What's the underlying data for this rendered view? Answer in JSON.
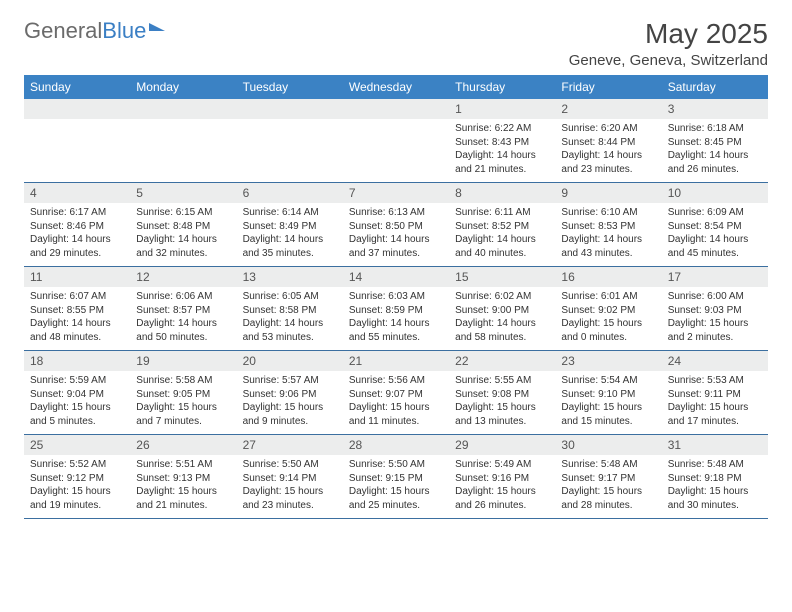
{
  "logo": {
    "part1": "General",
    "part2": "Blue"
  },
  "title": "May 2025",
  "location": "Geneve, Geneva, Switzerland",
  "header_bg": "#3b82c4",
  "day_headers": [
    "Sunday",
    "Monday",
    "Tuesday",
    "Wednesday",
    "Thursday",
    "Friday",
    "Saturday"
  ],
  "weeks": [
    {
      "nums": [
        "",
        "",
        "",
        "",
        "1",
        "2",
        "3"
      ],
      "cells": [
        null,
        null,
        null,
        null,
        {
          "sunrise": "6:22 AM",
          "sunset": "8:43 PM",
          "daylight": "14 hours and 21 minutes."
        },
        {
          "sunrise": "6:20 AM",
          "sunset": "8:44 PM",
          "daylight": "14 hours and 23 minutes."
        },
        {
          "sunrise": "6:18 AM",
          "sunset": "8:45 PM",
          "daylight": "14 hours and 26 minutes."
        }
      ]
    },
    {
      "nums": [
        "4",
        "5",
        "6",
        "7",
        "8",
        "9",
        "10"
      ],
      "cells": [
        {
          "sunrise": "6:17 AM",
          "sunset": "8:46 PM",
          "daylight": "14 hours and 29 minutes."
        },
        {
          "sunrise": "6:15 AM",
          "sunset": "8:48 PM",
          "daylight": "14 hours and 32 minutes."
        },
        {
          "sunrise": "6:14 AM",
          "sunset": "8:49 PM",
          "daylight": "14 hours and 35 minutes."
        },
        {
          "sunrise": "6:13 AM",
          "sunset": "8:50 PM",
          "daylight": "14 hours and 37 minutes."
        },
        {
          "sunrise": "6:11 AM",
          "sunset": "8:52 PM",
          "daylight": "14 hours and 40 minutes."
        },
        {
          "sunrise": "6:10 AM",
          "sunset": "8:53 PM",
          "daylight": "14 hours and 43 minutes."
        },
        {
          "sunrise": "6:09 AM",
          "sunset": "8:54 PM",
          "daylight": "14 hours and 45 minutes."
        }
      ]
    },
    {
      "nums": [
        "11",
        "12",
        "13",
        "14",
        "15",
        "16",
        "17"
      ],
      "cells": [
        {
          "sunrise": "6:07 AM",
          "sunset": "8:55 PM",
          "daylight": "14 hours and 48 minutes."
        },
        {
          "sunrise": "6:06 AM",
          "sunset": "8:57 PM",
          "daylight": "14 hours and 50 minutes."
        },
        {
          "sunrise": "6:05 AM",
          "sunset": "8:58 PM",
          "daylight": "14 hours and 53 minutes."
        },
        {
          "sunrise": "6:03 AM",
          "sunset": "8:59 PM",
          "daylight": "14 hours and 55 minutes."
        },
        {
          "sunrise": "6:02 AM",
          "sunset": "9:00 PM",
          "daylight": "14 hours and 58 minutes."
        },
        {
          "sunrise": "6:01 AM",
          "sunset": "9:02 PM",
          "daylight": "15 hours and 0 minutes."
        },
        {
          "sunrise": "6:00 AM",
          "sunset": "9:03 PM",
          "daylight": "15 hours and 2 minutes."
        }
      ]
    },
    {
      "nums": [
        "18",
        "19",
        "20",
        "21",
        "22",
        "23",
        "24"
      ],
      "cells": [
        {
          "sunrise": "5:59 AM",
          "sunset": "9:04 PM",
          "daylight": "15 hours and 5 minutes."
        },
        {
          "sunrise": "5:58 AM",
          "sunset": "9:05 PM",
          "daylight": "15 hours and 7 minutes."
        },
        {
          "sunrise": "5:57 AM",
          "sunset": "9:06 PM",
          "daylight": "15 hours and 9 minutes."
        },
        {
          "sunrise": "5:56 AM",
          "sunset": "9:07 PM",
          "daylight": "15 hours and 11 minutes."
        },
        {
          "sunrise": "5:55 AM",
          "sunset": "9:08 PM",
          "daylight": "15 hours and 13 minutes."
        },
        {
          "sunrise": "5:54 AM",
          "sunset": "9:10 PM",
          "daylight": "15 hours and 15 minutes."
        },
        {
          "sunrise": "5:53 AM",
          "sunset": "9:11 PM",
          "daylight": "15 hours and 17 minutes."
        }
      ]
    },
    {
      "nums": [
        "25",
        "26",
        "27",
        "28",
        "29",
        "30",
        "31"
      ],
      "cells": [
        {
          "sunrise": "5:52 AM",
          "sunset": "9:12 PM",
          "daylight": "15 hours and 19 minutes."
        },
        {
          "sunrise": "5:51 AM",
          "sunset": "9:13 PM",
          "daylight": "15 hours and 21 minutes."
        },
        {
          "sunrise": "5:50 AM",
          "sunset": "9:14 PM",
          "daylight": "15 hours and 23 minutes."
        },
        {
          "sunrise": "5:50 AM",
          "sunset": "9:15 PM",
          "daylight": "15 hours and 25 minutes."
        },
        {
          "sunrise": "5:49 AM",
          "sunset": "9:16 PM",
          "daylight": "15 hours and 26 minutes."
        },
        {
          "sunrise": "5:48 AM",
          "sunset": "9:17 PM",
          "daylight": "15 hours and 28 minutes."
        },
        {
          "sunrise": "5:48 AM",
          "sunset": "9:18 PM",
          "daylight": "15 hours and 30 minutes."
        }
      ]
    }
  ],
  "labels": {
    "sunrise": "Sunrise: ",
    "sunset": "Sunset: ",
    "daylight": "Daylight: "
  }
}
